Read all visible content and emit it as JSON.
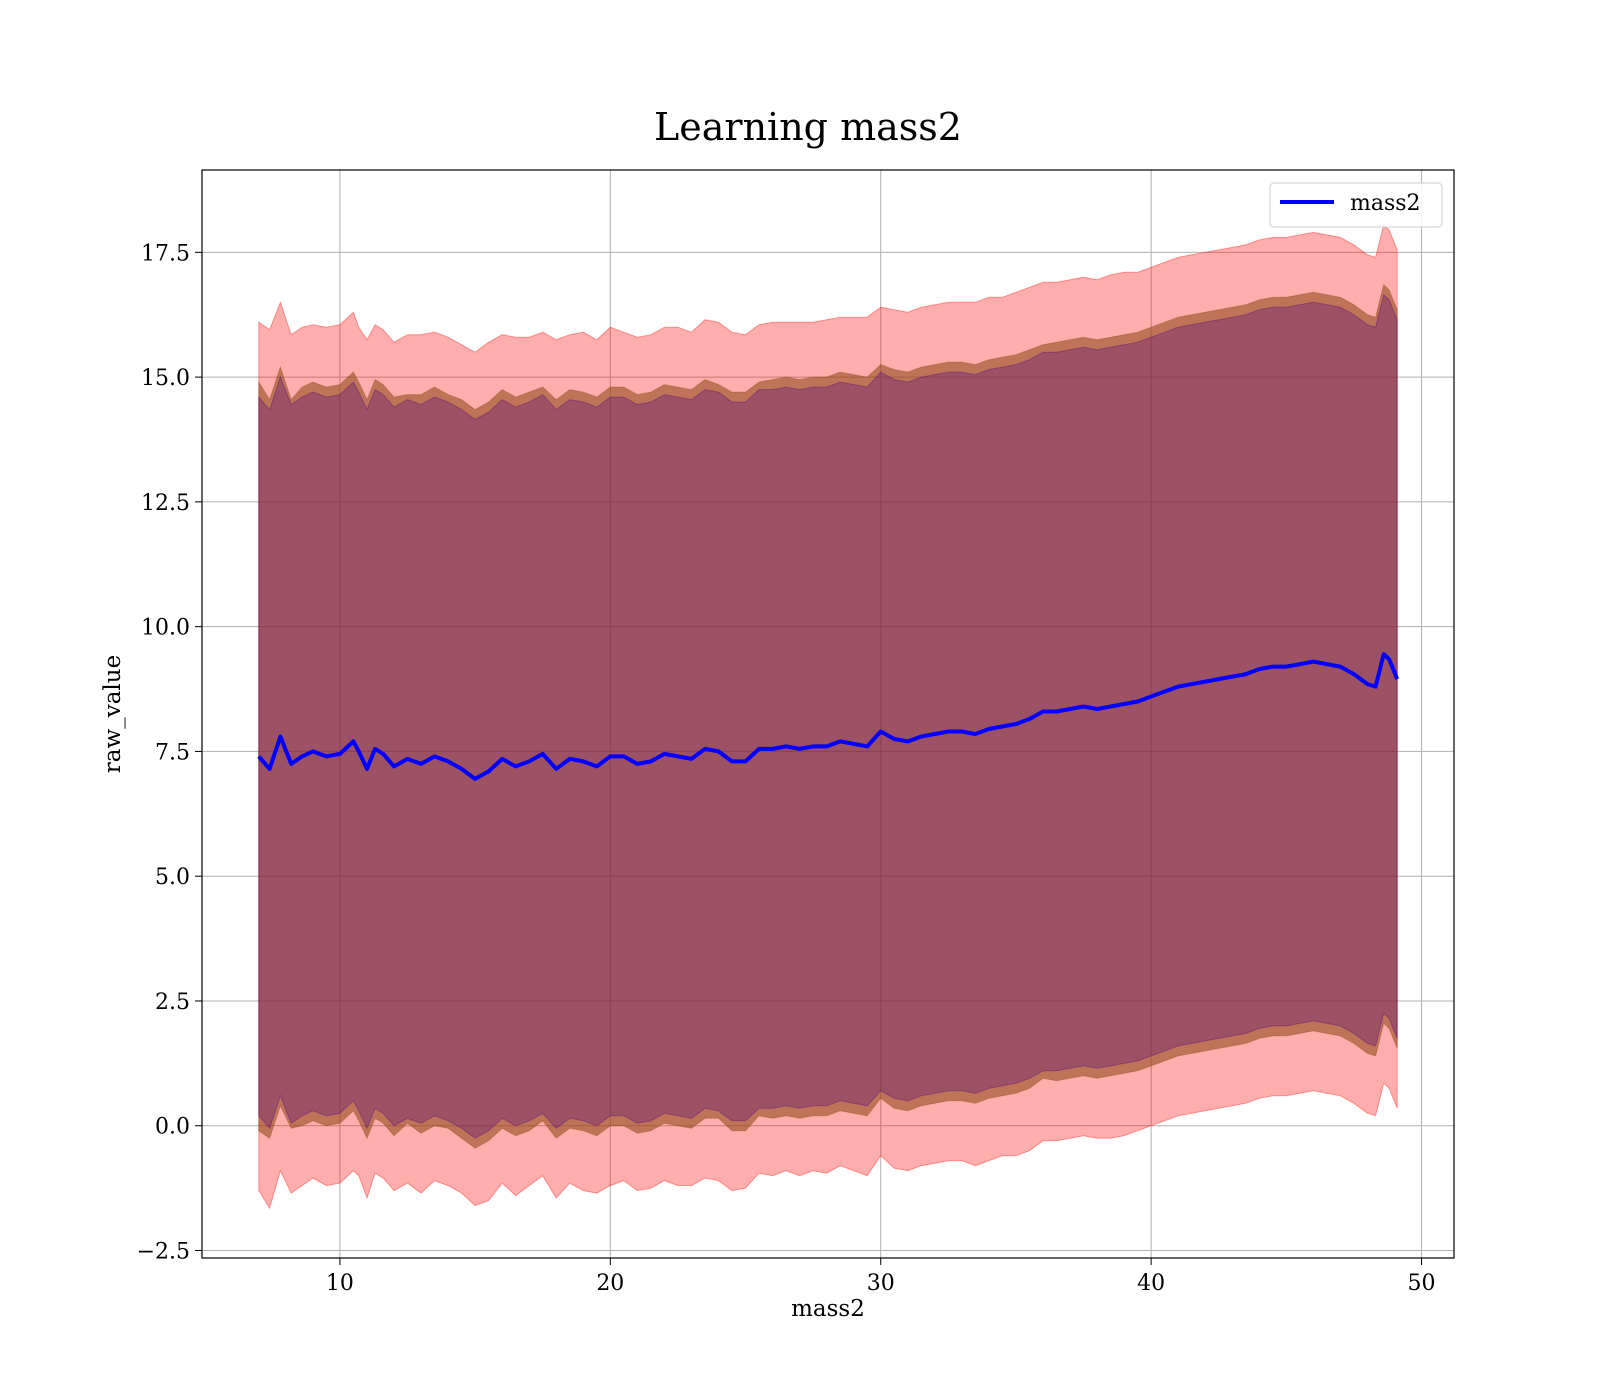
{
  "chart_data": {
    "type": "area",
    "title": "Learning mass2",
    "xlabel": "mass2",
    "ylabel": "raw_value",
    "xlim": [
      4.9,
      51.2
    ],
    "ylim": [
      -2.65,
      19.15
    ],
    "x_ticks": [
      10,
      20,
      30,
      40,
      50
    ],
    "x_tick_labels": [
      "10",
      "20",
      "30",
      "40",
      "50"
    ],
    "y_ticks": [
      -2.5,
      0.0,
      2.5,
      5.0,
      7.5,
      10.0,
      12.5,
      15.0,
      17.5
    ],
    "y_tick_labels": [
      "−2.5",
      "0.0",
      "2.5",
      "5.0",
      "7.5",
      "10.0",
      "12.5",
      "15.0",
      "17.5"
    ],
    "grid": true,
    "legend": {
      "placement": "upper right",
      "entries": [
        "mass2"
      ]
    },
    "colors": {
      "mean_line": "#0000ff",
      "outer_band": "#ff0000",
      "middle_band": "#8b4513",
      "inner_band": "#4b0082"
    },
    "x": [
      7.0,
      7.4,
      7.8,
      8.2,
      8.6,
      9.0,
      9.5,
      10.0,
      10.5,
      10.7,
      11.0,
      11.3,
      11.6,
      12.0,
      12.5,
      13.0,
      13.5,
      14.0,
      14.5,
      15.0,
      15.5,
      16.0,
      16.5,
      17.0,
      17.5,
      18.0,
      18.5,
      19.0,
      19.5,
      20.0,
      20.5,
      21.0,
      21.5,
      22.0,
      22.5,
      23.0,
      23.5,
      24.0,
      24.5,
      25.0,
      25.5,
      26.0,
      26.5,
      27.0,
      27.5,
      28.0,
      28.5,
      29.0,
      29.5,
      30.0,
      30.5,
      31.0,
      31.5,
      32.0,
      32.5,
      33.0,
      33.5,
      34.0,
      34.5,
      35.0,
      35.5,
      36.0,
      36.5,
      37.0,
      37.5,
      38.0,
      38.5,
      39.0,
      39.5,
      40.0,
      40.5,
      41.0,
      41.5,
      42.0,
      42.5,
      43.0,
      43.5,
      44.0,
      44.5,
      45.0,
      45.5,
      46.0,
      46.5,
      47.0,
      47.5,
      48.0,
      48.3,
      48.6,
      48.8,
      49.1
    ],
    "series": [
      {
        "name": "mass2",
        "values": [
          7.4,
          7.15,
          7.8,
          7.25,
          7.4,
          7.5,
          7.4,
          7.45,
          7.7,
          7.5,
          7.15,
          7.55,
          7.45,
          7.2,
          7.35,
          7.25,
          7.4,
          7.3,
          7.15,
          6.95,
          7.1,
          7.35,
          7.2,
          7.3,
          7.45,
          7.15,
          7.35,
          7.3,
          7.2,
          7.4,
          7.4,
          7.25,
          7.3,
          7.45,
          7.4,
          7.35,
          7.55,
          7.5,
          7.3,
          7.3,
          7.55,
          7.55,
          7.6,
          7.55,
          7.6,
          7.6,
          7.7,
          7.65,
          7.6,
          7.9,
          7.75,
          7.7,
          7.8,
          7.85,
          7.9,
          7.9,
          7.85,
          7.95,
          8.0,
          8.05,
          8.15,
          8.3,
          8.3,
          8.35,
          8.4,
          8.35,
          8.4,
          8.45,
          8.5,
          8.6,
          8.7,
          8.8,
          8.85,
          8.9,
          8.95,
          9.0,
          9.05,
          9.15,
          9.2,
          9.2,
          9.25,
          9.3,
          9.25,
          9.2,
          9.05,
          8.85,
          8.8,
          9.45,
          9.35,
          8.95
        ]
      }
    ],
    "bands": [
      {
        "kind": "outer",
        "offset": [
          8.7,
          8.8,
          8.7,
          8.6,
          8.6,
          8.55,
          8.6,
          8.6,
          8.6,
          8.5,
          8.6,
          8.5,
          8.5,
          8.5,
          8.5,
          8.6,
          8.5,
          8.5,
          8.5,
          8.55,
          8.6,
          8.5,
          8.6,
          8.5,
          8.45,
          8.6,
          8.5,
          8.6,
          8.55,
          8.6,
          8.5,
          8.55,
          8.55,
          8.55,
          8.6,
          8.55,
          8.6,
          8.6,
          8.6,
          8.55,
          8.5,
          8.55,
          8.5,
          8.55,
          8.5,
          8.55,
          8.5,
          8.55,
          8.6,
          8.5,
          8.6,
          8.6,
          8.6,
          8.6,
          8.6,
          8.6,
          8.65,
          8.65,
          8.6,
          8.65,
          8.65,
          8.6,
          8.6,
          8.6,
          8.6,
          8.6,
          8.65,
          8.65,
          8.6,
          8.6,
          8.6,
          8.6,
          8.6,
          8.6,
          8.6,
          8.6,
          8.6,
          8.6,
          8.6,
          8.6,
          8.6,
          8.6,
          8.6,
          8.6,
          8.6,
          8.6,
          8.6,
          8.6,
          8.6,
          8.6
        ]
      },
      {
        "kind": "middle",
        "offset": [
          7.5,
          7.4,
          7.4,
          7.3,
          7.4,
          7.4,
          7.4,
          7.4,
          7.4,
          7.4,
          7.4,
          7.4,
          7.4,
          7.4,
          7.3,
          7.4,
          7.4,
          7.35,
          7.4,
          7.4,
          7.4,
          7.4,
          7.4,
          7.4,
          7.35,
          7.4,
          7.4,
          7.4,
          7.4,
          7.4,
          7.4,
          7.4,
          7.4,
          7.4,
          7.4,
          7.4,
          7.4,
          7.35,
          7.4,
          7.4,
          7.35,
          7.4,
          7.4,
          7.4,
          7.4,
          7.4,
          7.4,
          7.4,
          7.4,
          7.35,
          7.4,
          7.4,
          7.4,
          7.4,
          7.4,
          7.4,
          7.4,
          7.4,
          7.4,
          7.4,
          7.4,
          7.35,
          7.4,
          7.4,
          7.4,
          7.4,
          7.4,
          7.4,
          7.4,
          7.4,
          7.4,
          7.4,
          7.4,
          7.4,
          7.4,
          7.4,
          7.4,
          7.4,
          7.4,
          7.4,
          7.4,
          7.4,
          7.4,
          7.4,
          7.4,
          7.4,
          7.4,
          7.4,
          7.4,
          7.4
        ]
      },
      {
        "kind": "inner",
        "offset": [
          7.2,
          7.2,
          7.2,
          7.2,
          7.2,
          7.2,
          7.2,
          7.2,
          7.2,
          7.2,
          7.2,
          7.2,
          7.2,
          7.2,
          7.2,
          7.2,
          7.2,
          7.2,
          7.2,
          7.2,
          7.2,
          7.2,
          7.2,
          7.2,
          7.2,
          7.2,
          7.2,
          7.2,
          7.2,
          7.2,
          7.2,
          7.2,
          7.2,
          7.2,
          7.2,
          7.2,
          7.2,
          7.2,
          7.2,
          7.2,
          7.2,
          7.2,
          7.2,
          7.2,
          7.2,
          7.2,
          7.2,
          7.2,
          7.2,
          7.2,
          7.2,
          7.2,
          7.2,
          7.2,
          7.2,
          7.2,
          7.2,
          7.2,
          7.2,
          7.2,
          7.2,
          7.2,
          7.2,
          7.2,
          7.2,
          7.2,
          7.2,
          7.2,
          7.2,
          7.2,
          7.2,
          7.2,
          7.2,
          7.2,
          7.2,
          7.2,
          7.2,
          7.2,
          7.2,
          7.2,
          7.2,
          7.2,
          7.2,
          7.2,
          7.2,
          7.2,
          7.2,
          7.2,
          7.2,
          7.2
        ]
      }
    ]
  }
}
